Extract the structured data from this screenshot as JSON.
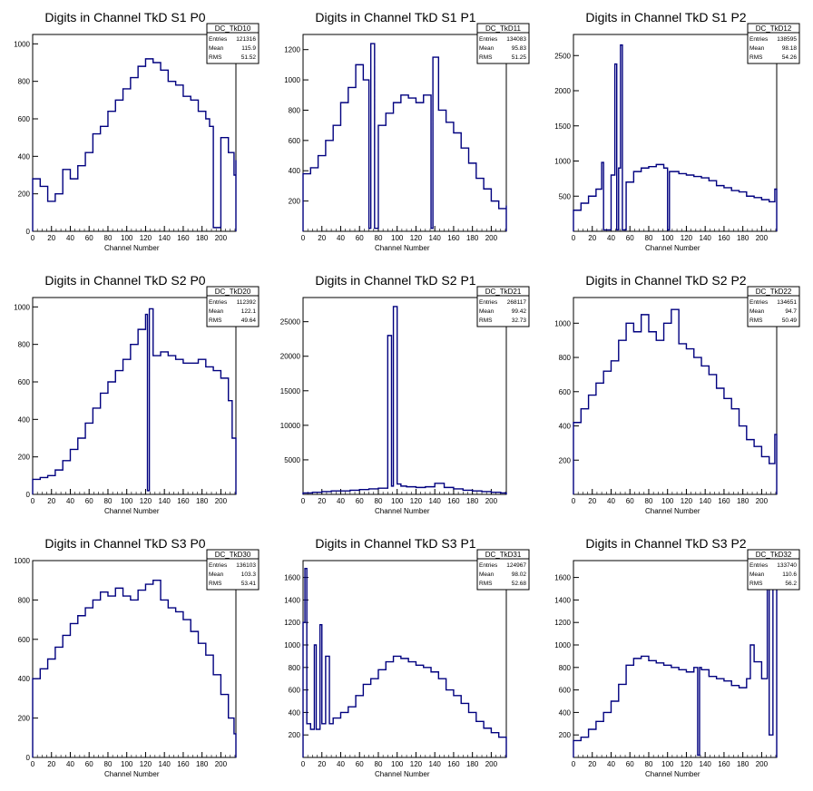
{
  "colors": {
    "histogram": "#00007f",
    "frame": "#000000",
    "background": "#ffffff"
  },
  "chart_data": [
    {
      "type": "histogram-step",
      "title": "Digits in Channel TkD S1 P0",
      "xlabel": "Channel Number",
      "xlim": [
        0,
        216
      ],
      "ylim": [
        0,
        1050
      ],
      "xticks": [
        0,
        20,
        40,
        60,
        80,
        100,
        120,
        140,
        160,
        180,
        200
      ],
      "yticks": [
        0,
        200,
        400,
        600,
        800,
        1000
      ],
      "stats": {
        "name": "DC_TkD10",
        "entries": "121316",
        "mean": "115.9",
        "rms": "51.52"
      },
      "x": [
        0,
        8,
        16,
        24,
        32,
        40,
        48,
        56,
        64,
        72,
        80,
        88,
        96,
        104,
        112,
        120,
        128,
        136,
        144,
        152,
        160,
        168,
        176,
        184,
        188,
        192,
        200,
        208,
        214,
        216
      ],
      "values": [
        280,
        240,
        160,
        200,
        330,
        280,
        350,
        420,
        520,
        560,
        640,
        700,
        760,
        820,
        880,
        920,
        900,
        860,
        800,
        780,
        720,
        700,
        640,
        600,
        560,
        20,
        500,
        420,
        300,
        380
      ]
    },
    {
      "type": "histogram-step",
      "title": "Digits in Channel TkD S1 P1",
      "xlabel": "Channel Number",
      "xlim": [
        0,
        216
      ],
      "ylim": [
        0,
        1300
      ],
      "xticks": [
        0,
        20,
        40,
        60,
        80,
        100,
        120,
        140,
        160,
        180,
        200
      ],
      "yticks": [
        200,
        400,
        600,
        800,
        1000,
        1200
      ],
      "stats": {
        "name": "DC_TkD11",
        "entries": "134083",
        "mean": "95.83",
        "rms": "51.25"
      },
      "x": [
        0,
        8,
        16,
        24,
        32,
        40,
        48,
        56,
        64,
        70,
        72,
        76,
        80,
        88,
        96,
        104,
        112,
        120,
        128,
        136,
        138,
        144,
        152,
        160,
        168,
        176,
        184,
        192,
        200,
        208,
        216
      ],
      "values": [
        380,
        420,
        500,
        600,
        700,
        850,
        950,
        1100,
        1000,
        20,
        1240,
        20,
        700,
        780,
        850,
        900,
        880,
        850,
        900,
        20,
        1150,
        800,
        720,
        650,
        550,
        450,
        350,
        280,
        200,
        150,
        170
      ]
    },
    {
      "type": "histogram-step",
      "title": "Digits in Channel TkD S1 P2",
      "xlabel": "Channel Number",
      "xlim": [
        0,
        216
      ],
      "ylim": [
        0,
        2800
      ],
      "xticks": [
        0,
        20,
        40,
        60,
        80,
        100,
        120,
        140,
        160,
        180,
        200
      ],
      "yticks": [
        500,
        1000,
        1500,
        2000,
        2500
      ],
      "stats": {
        "name": "DC_TkD12",
        "entries": "138595",
        "mean": "98.18",
        "rms": "54.26"
      },
      "x": [
        0,
        8,
        16,
        24,
        30,
        32,
        40,
        44,
        46,
        48,
        50,
        52,
        56,
        64,
        72,
        80,
        88,
        96,
        100,
        102,
        104,
        112,
        120,
        128,
        136,
        144,
        152,
        160,
        168,
        176,
        184,
        192,
        200,
        208,
        214,
        216
      ],
      "values": [
        300,
        400,
        500,
        600,
        980,
        20,
        800,
        2380,
        20,
        900,
        2650,
        20,
        700,
        850,
        900,
        920,
        950,
        900,
        20,
        850,
        850,
        820,
        800,
        780,
        760,
        720,
        650,
        620,
        580,
        560,
        500,
        480,
        450,
        420,
        600,
        450
      ]
    },
    {
      "type": "histogram-step",
      "title": "Digits in Channel TkD S2 P0",
      "xlabel": "Channel Number",
      "xlim": [
        0,
        216
      ],
      "ylim": [
        0,
        1050
      ],
      "xticks": [
        0,
        20,
        40,
        60,
        80,
        100,
        120,
        140,
        160,
        180,
        200
      ],
      "yticks": [
        0,
        200,
        400,
        600,
        800,
        1000
      ],
      "stats": {
        "name": "DC_TkD20",
        "entries": "112392",
        "mean": "122.1",
        "rms": "49.64"
      },
      "x": [
        0,
        8,
        16,
        24,
        32,
        40,
        48,
        56,
        64,
        72,
        80,
        88,
        96,
        104,
        112,
        120,
        122,
        124,
        128,
        136,
        144,
        152,
        160,
        168,
        176,
        184,
        192,
        200,
        208,
        212,
        216
      ],
      "values": [
        80,
        90,
        100,
        130,
        180,
        240,
        300,
        380,
        460,
        540,
        600,
        660,
        720,
        800,
        880,
        960,
        20,
        990,
        740,
        760,
        740,
        720,
        700,
        700,
        720,
        680,
        660,
        620,
        500,
        300,
        240
      ]
    },
    {
      "type": "histogram-step",
      "title": "Digits in Channel TkD S2 P1",
      "xlabel": "Channel Number",
      "xlim": [
        0,
        216
      ],
      "ylim": [
        0,
        28500
      ],
      "xticks": [
        0,
        20,
        40,
        60,
        80,
        100,
        120,
        140,
        160,
        180,
        200
      ],
      "yticks": [
        5000,
        10000,
        15000,
        20000,
        25000
      ],
      "stats": {
        "name": "DC_TkD21",
        "entries": "268117",
        "mean": "99.42",
        "rms": "32.73"
      },
      "x": [
        0,
        10,
        20,
        30,
        40,
        50,
        60,
        70,
        80,
        90,
        94,
        96,
        100,
        104,
        110,
        120,
        130,
        140,
        150,
        160,
        170,
        180,
        190,
        200,
        210,
        216
      ],
      "values": [
        200,
        300,
        400,
        500,
        500,
        600,
        700,
        800,
        900,
        23000,
        1200,
        27200,
        1500,
        1200,
        1100,
        1000,
        1100,
        1600,
        1000,
        800,
        600,
        500,
        400,
        300,
        200,
        150
      ]
    },
    {
      "type": "histogram-step",
      "title": "Digits in Channel TkD S2 P2",
      "xlabel": "Channel Number",
      "xlim": [
        0,
        216
      ],
      "ylim": [
        0,
        1150
      ],
      "xticks": [
        0,
        20,
        40,
        60,
        80,
        100,
        120,
        140,
        160,
        180,
        200
      ],
      "yticks": [
        200,
        400,
        600,
        800,
        1000
      ],
      "stats": {
        "name": "DC_TkD22",
        "entries": "134651",
        "mean": "94.7",
        "rms": "50.49"
      },
      "x": [
        0,
        8,
        16,
        24,
        32,
        40,
        48,
        56,
        64,
        72,
        80,
        88,
        96,
        104,
        112,
        120,
        128,
        136,
        144,
        152,
        160,
        168,
        176,
        184,
        192,
        200,
        208,
        214,
        216
      ],
      "values": [
        420,
        500,
        580,
        650,
        720,
        780,
        900,
        1000,
        950,
        1050,
        950,
        900,
        1000,
        1080,
        880,
        850,
        800,
        750,
        700,
        620,
        560,
        500,
        400,
        320,
        280,
        220,
        180,
        350,
        250
      ]
    },
    {
      "type": "histogram-step",
      "title": "Digits in Channel TkD S3 P0",
      "xlabel": "Channel Number",
      "xlim": [
        0,
        216
      ],
      "ylim": [
        0,
        1000
      ],
      "xticks": [
        0,
        20,
        40,
        60,
        80,
        100,
        120,
        140,
        160,
        180,
        200
      ],
      "yticks": [
        0,
        200,
        400,
        600,
        800,
        1000
      ],
      "stats": {
        "name": "DC_TkD30",
        "entries": "136103",
        "mean": "103.3",
        "rms": "53.41"
      },
      "x": [
        0,
        8,
        16,
        24,
        32,
        40,
        48,
        56,
        64,
        72,
        80,
        88,
        96,
        104,
        112,
        120,
        128,
        136,
        144,
        152,
        160,
        168,
        176,
        184,
        192,
        200,
        208,
        214,
        216
      ],
      "values": [
        400,
        450,
        500,
        560,
        620,
        680,
        720,
        760,
        800,
        840,
        820,
        860,
        820,
        800,
        850,
        880,
        900,
        800,
        760,
        740,
        700,
        640,
        580,
        520,
        420,
        320,
        200,
        120,
        60
      ]
    },
    {
      "type": "histogram-step",
      "title": "Digits in Channel TkD S3 P1",
      "xlabel": "Channel Number",
      "xlim": [
        0,
        216
      ],
      "ylim": [
        0,
        1750
      ],
      "xticks": [
        0,
        20,
        40,
        60,
        80,
        100,
        120,
        140,
        160,
        180,
        200
      ],
      "yticks": [
        200,
        400,
        600,
        800,
        1000,
        1200,
        1400,
        1600
      ],
      "stats": {
        "name": "DC_TkD31",
        "entries": "124967",
        "mean": "98.02",
        "rms": "52.68"
      },
      "x": [
        0,
        2,
        4,
        8,
        12,
        14,
        18,
        20,
        24,
        28,
        32,
        40,
        48,
        56,
        64,
        72,
        80,
        88,
        96,
        104,
        112,
        120,
        128,
        136,
        144,
        152,
        160,
        168,
        176,
        184,
        192,
        200,
        208,
        216
      ],
      "values": [
        1200,
        1680,
        300,
        250,
        1000,
        250,
        1180,
        300,
        900,
        300,
        350,
        400,
        450,
        550,
        650,
        700,
        780,
        850,
        900,
        880,
        850,
        820,
        800,
        760,
        700,
        600,
        550,
        480,
        400,
        320,
        260,
        220,
        180,
        150
      ]
    },
    {
      "type": "histogram-step",
      "title": "Digits in Channel TkD S3 P2",
      "xlabel": "Channel Number",
      "xlim": [
        0,
        216
      ],
      "ylim": [
        0,
        1750
      ],
      "xticks": [
        0,
        20,
        40,
        60,
        80,
        100,
        120,
        140,
        160,
        180,
        200
      ],
      "yticks": [
        200,
        400,
        600,
        800,
        1000,
        1200,
        1400,
        1600
      ],
      "stats": {
        "name": "DC_TkD32",
        "entries": "133740",
        "mean": "110.6",
        "rms": "56.2"
      },
      "x": [
        0,
        8,
        16,
        24,
        32,
        40,
        48,
        56,
        64,
        72,
        80,
        88,
        96,
        104,
        112,
        120,
        128,
        132,
        134,
        136,
        144,
        152,
        160,
        168,
        176,
        184,
        188,
        192,
        200,
        206,
        208,
        212,
        216
      ],
      "values": [
        150,
        180,
        250,
        320,
        400,
        500,
        650,
        820,
        880,
        900,
        860,
        840,
        820,
        800,
        780,
        760,
        800,
        20,
        800,
        780,
        720,
        700,
        680,
        640,
        620,
        700,
        1000,
        850,
        700,
        1700,
        200,
        1500,
        50
      ]
    }
  ]
}
